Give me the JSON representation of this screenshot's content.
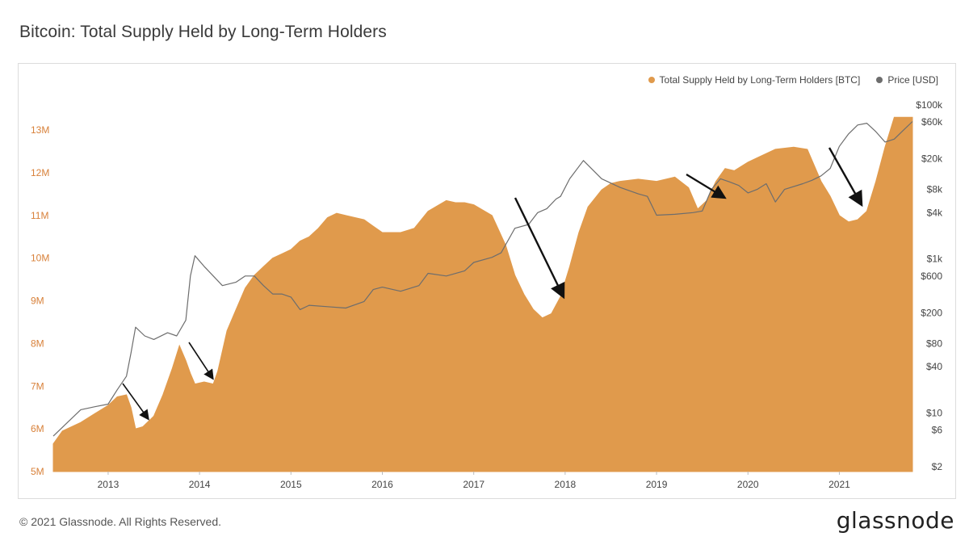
{
  "title": "Bitcoin: Total Supply Held by Long-Term Holders",
  "footer": {
    "copyright": "© 2021 Glassnode. All Rights Reserved.",
    "brand": "glassnode"
  },
  "legend": [
    {
      "label": "Total Supply Held by Long-Term Holders [BTC]",
      "color": "#e09a4c"
    },
    {
      "label": "Price [USD]",
      "color": "#6d6d6d"
    }
  ],
  "colors": {
    "supply": "#e09a4c",
    "price": "#6d6d6d",
    "left_axis": "#d8813a",
    "arrow": "#111111"
  },
  "chart_data": {
    "type": "area",
    "title": "Bitcoin: Total Supply Held by Long-Term Holders",
    "left_axis": {
      "ticks": [
        "5M",
        "6M",
        "7M",
        "8M",
        "9M",
        "10M",
        "11M",
        "12M",
        "13M"
      ],
      "values": [
        5,
        6,
        7,
        8,
        9,
        10,
        11,
        12,
        13
      ],
      "ylim": [
        5,
        13.4
      ]
    },
    "right_axis": {
      "scale": "log",
      "ticks": [
        "$2",
        "$6",
        "$10",
        "$40",
        "$80",
        "$200",
        "$600",
        "$1k",
        "$4k",
        "$8k",
        "$20k",
        "$60k",
        "$100k"
      ],
      "values": [
        2,
        6,
        10,
        40,
        80,
        200,
        600,
        1000,
        4000,
        8000,
        20000,
        60000,
        100000
      ]
    },
    "x_axis": {
      "ticks": [
        "2013",
        "2014",
        "2015",
        "2016",
        "2017",
        "2018",
        "2019",
        "2020",
        "2021"
      ],
      "values": [
        2013,
        2014,
        2015,
        2016,
        2017,
        2018,
        2019,
        2020,
        2021
      ],
      "xlim": [
        2012.4,
        2021.8
      ]
    },
    "series": [
      {
        "name": "Total Supply Held by Long-Term Holders [BTC]",
        "unit": "M BTC",
        "x": [
          2012.4,
          2012.5,
          2012.7,
          2012.85,
          2013.0,
          2013.1,
          2013.2,
          2013.25,
          2013.3,
          2013.38,
          2013.5,
          2013.6,
          2013.7,
          2013.78,
          2013.85,
          2013.9,
          2013.95,
          2014.05,
          2014.15,
          2014.2,
          2014.3,
          2014.4,
          2014.5,
          2014.6,
          2014.7,
          2014.8,
          2014.9,
          2015.0,
          2015.1,
          2015.2,
          2015.3,
          2015.4,
          2015.5,
          2015.6,
          2015.7,
          2015.8,
          2015.9,
          2016.0,
          2016.2,
          2016.35,
          2016.5,
          2016.7,
          2016.8,
          2016.9,
          2017.0,
          2017.2,
          2017.35,
          2017.45,
          2017.55,
          2017.65,
          2017.75,
          2017.85,
          2017.95,
          2018.05,
          2018.15,
          2018.25,
          2018.4,
          2018.5,
          2018.6,
          2018.8,
          2019.0,
          2019.2,
          2019.35,
          2019.45,
          2019.55,
          2019.65,
          2019.75,
          2019.85,
          2020.0,
          2020.1,
          2020.3,
          2020.5,
          2020.65,
          2020.8,
          2020.9,
          2021.0,
          2021.1,
          2021.2,
          2021.3,
          2021.4,
          2021.5,
          2021.6,
          2021.7,
          2021.8
        ],
        "values": [
          5.65,
          5.95,
          6.15,
          6.35,
          6.55,
          6.75,
          6.8,
          6.5,
          6.0,
          6.05,
          6.3,
          6.8,
          7.4,
          7.95,
          7.6,
          7.3,
          7.05,
          7.1,
          7.05,
          7.35,
          8.3,
          8.8,
          9.3,
          9.6,
          9.8,
          10.0,
          10.1,
          10.2,
          10.4,
          10.5,
          10.7,
          10.95,
          11.05,
          11.0,
          10.95,
          10.9,
          10.75,
          10.6,
          10.6,
          10.7,
          11.1,
          11.35,
          11.3,
          11.3,
          11.25,
          11.0,
          10.3,
          9.6,
          9.15,
          8.8,
          8.6,
          8.7,
          9.1,
          9.8,
          10.6,
          11.2,
          11.6,
          11.75,
          11.8,
          11.85,
          11.8,
          11.9,
          11.65,
          11.15,
          11.35,
          11.8,
          12.1,
          12.05,
          12.25,
          12.35,
          12.55,
          12.6,
          12.55,
          11.8,
          11.45,
          11.0,
          10.85,
          10.9,
          11.1,
          11.8,
          12.6,
          13.3,
          13.3,
          13.3
        ]
      },
      {
        "name": "Price [USD]",
        "unit": "USD",
        "x": [
          2012.4,
          2012.5,
          2012.7,
          2012.85,
          2013.0,
          2013.1,
          2013.2,
          2013.25,
          2013.3,
          2013.4,
          2013.5,
          2013.65,
          2013.75,
          2013.85,
          2013.9,
          2013.95,
          2014.05,
          2014.15,
          2014.25,
          2014.4,
          2014.5,
          2014.6,
          2014.7,
          2014.8,
          2014.9,
          2015.0,
          2015.1,
          2015.2,
          2015.4,
          2015.6,
          2015.8,
          2015.9,
          2016.0,
          2016.2,
          2016.4,
          2016.5,
          2016.7,
          2016.9,
          2017.0,
          2017.2,
          2017.3,
          2017.45,
          2017.6,
          2017.7,
          2017.8,
          2017.9,
          2017.95,
          2018.05,
          2018.2,
          2018.4,
          2018.6,
          2018.8,
          2018.9,
          2019.0,
          2019.2,
          2019.4,
          2019.5,
          2019.6,
          2019.7,
          2019.8,
          2019.9,
          2020.0,
          2020.1,
          2020.2,
          2020.3,
          2020.4,
          2020.6,
          2020.7,
          2020.8,
          2020.9,
          2021.0,
          2021.1,
          2021.2,
          2021.3,
          2021.4,
          2021.5,
          2021.6,
          2021.7,
          2021.8
        ],
        "values": [
          5,
          6.5,
          11,
          12,
          13,
          20,
          30,
          60,
          130,
          100,
          90,
          110,
          100,
          160,
          600,
          1100,
          800,
          600,
          450,
          500,
          600,
          600,
          450,
          350,
          350,
          320,
          220,
          250,
          240,
          230,
          280,
          400,
          430,
          380,
          450,
          650,
          600,
          700,
          900,
          1050,
          1200,
          2500,
          2800,
          4000,
          4500,
          6000,
          6500,
          11000,
          19000,
          11000,
          8500,
          7000,
          6500,
          3700,
          3800,
          4000,
          4200,
          8000,
          11000,
          10000,
          9000,
          7200,
          8000,
          9500,
          5500,
          8000,
          9500,
          10500,
          12000,
          15000,
          29000,
          42000,
          55000,
          58000,
          45000,
          33000,
          36000,
          47000,
          61000
        ]
      }
    ],
    "annotations": "black arrows pointing to declines in long-term holder supply"
  }
}
